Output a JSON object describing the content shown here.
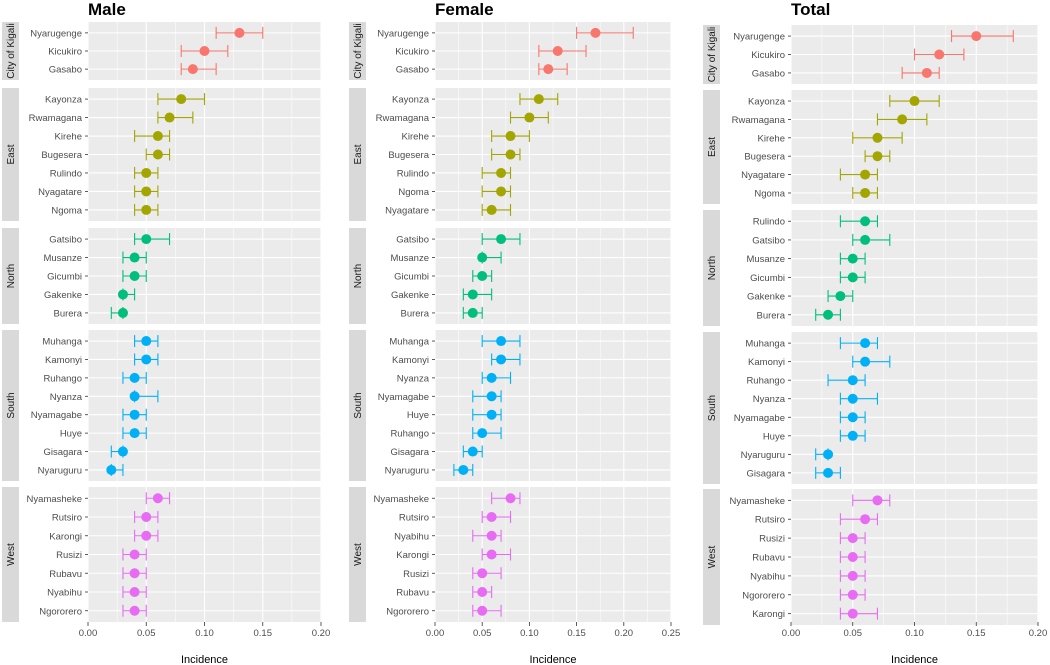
{
  "chart_data": [
    {
      "type": "scatter",
      "subtype": "dot-with-error-bars",
      "title": "Male",
      "xlabel": "Incidence",
      "ylabel": "",
      "xlim": [
        0,
        0.2
      ],
      "xticks": [
        "0.00",
        "0.05",
        "0.10",
        "0.15",
        "0.20"
      ],
      "xtick_values": [
        0,
        0.05,
        0.1,
        0.15,
        0.2
      ],
      "grid": true,
      "facets": [
        {
          "name": "City of Kigali",
          "color": "#F8766D",
          "rows": [
            {
              "district": "Nyarugenge",
              "value": 0.13,
              "lower": 0.11,
              "upper": 0.15
            },
            {
              "district": "Kicukiro",
              "value": 0.1,
              "lower": 0.08,
              "upper": 0.12
            },
            {
              "district": "Gasabo",
              "value": 0.09,
              "lower": 0.08,
              "upper": 0.11
            }
          ]
        },
        {
          "name": "East",
          "color": "#A3A500",
          "rows": [
            {
              "district": "Kayonza",
              "value": 0.08,
              "lower": 0.06,
              "upper": 0.1
            },
            {
              "district": "Rwamagana",
              "value": 0.07,
              "lower": 0.06,
              "upper": 0.09
            },
            {
              "district": "Kirehe",
              "value": 0.06,
              "lower": 0.04,
              "upper": 0.07
            },
            {
              "district": "Bugesera",
              "value": 0.06,
              "lower": 0.05,
              "upper": 0.07
            },
            {
              "district": "Rulindo",
              "value": 0.05,
              "lower": 0.04,
              "upper": 0.06
            },
            {
              "district": "Nyagatare",
              "value": 0.05,
              "lower": 0.04,
              "upper": 0.06
            },
            {
              "district": "Ngoma",
              "value": 0.05,
              "lower": 0.04,
              "upper": 0.06
            }
          ]
        },
        {
          "name": "North",
          "color": "#00BF7D",
          "rows": [
            {
              "district": "Gatsibo",
              "value": 0.05,
              "lower": 0.04,
              "upper": 0.07
            },
            {
              "district": "Musanze",
              "value": 0.04,
              "lower": 0.03,
              "upper": 0.05
            },
            {
              "district": "Gicumbi",
              "value": 0.04,
              "lower": 0.03,
              "upper": 0.05
            },
            {
              "district": "Gakenke",
              "value": 0.03,
              "lower": 0.03,
              "upper": 0.04
            },
            {
              "district": "Burera",
              "value": 0.03,
              "lower": 0.02,
              "upper": 0.03
            }
          ]
        },
        {
          "name": "South",
          "color": "#00B0F6",
          "rows": [
            {
              "district": "Muhanga",
              "value": 0.05,
              "lower": 0.04,
              "upper": 0.06
            },
            {
              "district": "Kamonyi",
              "value": 0.05,
              "lower": 0.04,
              "upper": 0.06
            },
            {
              "district": "Ruhango",
              "value": 0.04,
              "lower": 0.03,
              "upper": 0.05
            },
            {
              "district": "Nyanza",
              "value": 0.04,
              "lower": 0.04,
              "upper": 0.06
            },
            {
              "district": "Nyamagabe",
              "value": 0.04,
              "lower": 0.03,
              "upper": 0.05
            },
            {
              "district": "Huye",
              "value": 0.04,
              "lower": 0.03,
              "upper": 0.05
            },
            {
              "district": "Gisagara",
              "value": 0.03,
              "lower": 0.02,
              "upper": 0.03
            },
            {
              "district": "Nyaruguru",
              "value": 0.02,
              "lower": 0.02,
              "upper": 0.03
            }
          ]
        },
        {
          "name": "West",
          "color": "#E76BF3",
          "rows": [
            {
              "district": "Nyamasheke",
              "value": 0.06,
              "lower": 0.05,
              "upper": 0.07
            },
            {
              "district": "Rutsiro",
              "value": 0.05,
              "lower": 0.04,
              "upper": 0.06
            },
            {
              "district": "Karongi",
              "value": 0.05,
              "lower": 0.04,
              "upper": 0.06
            },
            {
              "district": "Rusizi",
              "value": 0.04,
              "lower": 0.03,
              "upper": 0.05
            },
            {
              "district": "Rubavu",
              "value": 0.04,
              "lower": 0.03,
              "upper": 0.05
            },
            {
              "district": "Nyabihu",
              "value": 0.04,
              "lower": 0.03,
              "upper": 0.05
            },
            {
              "district": "Ngororero",
              "value": 0.04,
              "lower": 0.03,
              "upper": 0.05
            }
          ]
        }
      ]
    },
    {
      "type": "scatter",
      "subtype": "dot-with-error-bars",
      "title": "Female",
      "xlabel": "Incidence",
      "ylabel": "",
      "xlim": [
        0,
        0.25
      ],
      "xticks": [
        "0.00",
        "0.05",
        "0.10",
        "0.15",
        "0.20",
        "0.25"
      ],
      "xtick_values": [
        0,
        0.05,
        0.1,
        0.15,
        0.2,
        0.25
      ],
      "grid": true,
      "facets": [
        {
          "name": "City of Kigali",
          "color": "#F8766D",
          "rows": [
            {
              "district": "Nyarugenge",
              "value": 0.17,
              "lower": 0.15,
              "upper": 0.21
            },
            {
              "district": "Kicukiro",
              "value": 0.13,
              "lower": 0.11,
              "upper": 0.16
            },
            {
              "district": "Gasabo",
              "value": 0.12,
              "lower": 0.11,
              "upper": 0.14
            }
          ]
        },
        {
          "name": "East",
          "color": "#A3A500",
          "rows": [
            {
              "district": "Kayonza",
              "value": 0.11,
              "lower": 0.09,
              "upper": 0.13
            },
            {
              "district": "Rwamagana",
              "value": 0.1,
              "lower": 0.08,
              "upper": 0.12
            },
            {
              "district": "Kirehe",
              "value": 0.08,
              "lower": 0.06,
              "upper": 0.1
            },
            {
              "district": "Bugesera",
              "value": 0.08,
              "lower": 0.06,
              "upper": 0.09
            },
            {
              "district": "Rulindo",
              "value": 0.07,
              "lower": 0.05,
              "upper": 0.08
            },
            {
              "district": "Ngoma",
              "value": 0.07,
              "lower": 0.05,
              "upper": 0.08
            },
            {
              "district": "Nyagatare",
              "value": 0.06,
              "lower": 0.05,
              "upper": 0.08
            }
          ]
        },
        {
          "name": "North",
          "color": "#00BF7D",
          "rows": [
            {
              "district": "Gatsibo",
              "value": 0.07,
              "lower": 0.05,
              "upper": 0.09
            },
            {
              "district": "Musanze",
              "value": 0.05,
              "lower": 0.05,
              "upper": 0.07
            },
            {
              "district": "Gicumbi",
              "value": 0.05,
              "lower": 0.04,
              "upper": 0.06
            },
            {
              "district": "Gakenke",
              "value": 0.04,
              "lower": 0.03,
              "upper": 0.06
            },
            {
              "district": "Burera",
              "value": 0.04,
              "lower": 0.03,
              "upper": 0.05
            }
          ]
        },
        {
          "name": "South",
          "color": "#00B0F6",
          "rows": [
            {
              "district": "Muhanga",
              "value": 0.07,
              "lower": 0.05,
              "upper": 0.09
            },
            {
              "district": "Kamonyi",
              "value": 0.07,
              "lower": 0.06,
              "upper": 0.09
            },
            {
              "district": "Nyanza",
              "value": 0.06,
              "lower": 0.05,
              "upper": 0.08
            },
            {
              "district": "Nyamagabe",
              "value": 0.06,
              "lower": 0.04,
              "upper": 0.07
            },
            {
              "district": "Huye",
              "value": 0.06,
              "lower": 0.04,
              "upper": 0.07
            },
            {
              "district": "Ruhango",
              "value": 0.05,
              "lower": 0.04,
              "upper": 0.07
            },
            {
              "district": "Gisagara",
              "value": 0.04,
              "lower": 0.03,
              "upper": 0.05
            },
            {
              "district": "Nyaruguru",
              "value": 0.03,
              "lower": 0.02,
              "upper": 0.04
            }
          ]
        },
        {
          "name": "West",
          "color": "#E76BF3",
          "rows": [
            {
              "district": "Nyamasheke",
              "value": 0.08,
              "lower": 0.06,
              "upper": 0.09
            },
            {
              "district": "Rutsiro",
              "value": 0.06,
              "lower": 0.05,
              "upper": 0.08
            },
            {
              "district": "Nyabihu",
              "value": 0.06,
              "lower": 0.04,
              "upper": 0.07
            },
            {
              "district": "Karongi",
              "value": 0.06,
              "lower": 0.05,
              "upper": 0.08
            },
            {
              "district": "Rusizi",
              "value": 0.05,
              "lower": 0.04,
              "upper": 0.07
            },
            {
              "district": "Rubavu",
              "value": 0.05,
              "lower": 0.04,
              "upper": 0.06
            },
            {
              "district": "Ngororero",
              "value": 0.05,
              "lower": 0.04,
              "upper": 0.07
            }
          ]
        }
      ]
    },
    {
      "type": "scatter",
      "subtype": "dot-with-error-bars",
      "title": "Total",
      "xlabel": "Incidence",
      "ylabel": "",
      "xlim": [
        0,
        0.2
      ],
      "xticks": [
        "0.00",
        "0.05",
        "0.10",
        "0.15",
        "0.20"
      ],
      "xtick_values": [
        0,
        0.05,
        0.1,
        0.15,
        0.2
      ],
      "grid": true,
      "facets": [
        {
          "name": "City of Kigali",
          "color": "#F8766D",
          "rows": [
            {
              "district": "Nyarugenge",
              "value": 0.15,
              "lower": 0.13,
              "upper": 0.18
            },
            {
              "district": "Kicukiro",
              "value": 0.12,
              "lower": 0.1,
              "upper": 0.14
            },
            {
              "district": "Gasabo",
              "value": 0.11,
              "lower": 0.09,
              "upper": 0.12
            }
          ]
        },
        {
          "name": "East",
          "color": "#A3A500",
          "rows": [
            {
              "district": "Kayonza",
              "value": 0.1,
              "lower": 0.08,
              "upper": 0.12
            },
            {
              "district": "Rwamagana",
              "value": 0.09,
              "lower": 0.07,
              "upper": 0.11
            },
            {
              "district": "Kirehe",
              "value": 0.07,
              "lower": 0.05,
              "upper": 0.09
            },
            {
              "district": "Bugesera",
              "value": 0.07,
              "lower": 0.06,
              "upper": 0.08
            },
            {
              "district": "Nyagatare",
              "value": 0.06,
              "lower": 0.04,
              "upper": 0.07
            },
            {
              "district": "Ngoma",
              "value": 0.06,
              "lower": 0.05,
              "upper": 0.07
            }
          ]
        },
        {
          "name": "North",
          "color": "#00BF7D",
          "rows": [
            {
              "district": "Rulindo",
              "value": 0.06,
              "lower": 0.04,
              "upper": 0.07
            },
            {
              "district": "Gatsibo",
              "value": 0.06,
              "lower": 0.05,
              "upper": 0.08
            },
            {
              "district": "Musanze",
              "value": 0.05,
              "lower": 0.04,
              "upper": 0.06
            },
            {
              "district": "Gicumbi",
              "value": 0.05,
              "lower": 0.04,
              "upper": 0.06
            },
            {
              "district": "Gakenke",
              "value": 0.04,
              "lower": 0.03,
              "upper": 0.05
            },
            {
              "district": "Burera",
              "value": 0.03,
              "lower": 0.02,
              "upper": 0.04
            }
          ]
        },
        {
          "name": "South",
          "color": "#00B0F6",
          "rows": [
            {
              "district": "Muhanga",
              "value": 0.06,
              "lower": 0.04,
              "upper": 0.07
            },
            {
              "district": "Kamonyi",
              "value": 0.06,
              "lower": 0.05,
              "upper": 0.08
            },
            {
              "district": "Ruhango",
              "value": 0.05,
              "lower": 0.03,
              "upper": 0.06
            },
            {
              "district": "Nyanza",
              "value": 0.05,
              "lower": 0.04,
              "upper": 0.07
            },
            {
              "district": "Nyamagabe",
              "value": 0.05,
              "lower": 0.04,
              "upper": 0.06
            },
            {
              "district": "Huye",
              "value": 0.05,
              "lower": 0.04,
              "upper": 0.06
            },
            {
              "district": "Nyaruguru",
              "value": 0.03,
              "lower": 0.02,
              "upper": 0.03
            },
            {
              "district": "Gisagara",
              "value": 0.03,
              "lower": 0.02,
              "upper": 0.04
            }
          ]
        },
        {
          "name": "West",
          "color": "#E76BF3",
          "rows": [
            {
              "district": "Nyamasheke",
              "value": 0.07,
              "lower": 0.05,
              "upper": 0.08
            },
            {
              "district": "Rutsiro",
              "value": 0.06,
              "lower": 0.04,
              "upper": 0.07
            },
            {
              "district": "Rusizi",
              "value": 0.05,
              "lower": 0.04,
              "upper": 0.06
            },
            {
              "district": "Rubavu",
              "value": 0.05,
              "lower": 0.04,
              "upper": 0.06
            },
            {
              "district": "Nyabihu",
              "value": 0.05,
              "lower": 0.04,
              "upper": 0.06
            },
            {
              "district": "Ngororero",
              "value": 0.05,
              "lower": 0.04,
              "upper": 0.06
            },
            {
              "district": "Karongi",
              "value": 0.05,
              "lower": 0.04,
              "upper": 0.07
            }
          ]
        }
      ]
    }
  ]
}
